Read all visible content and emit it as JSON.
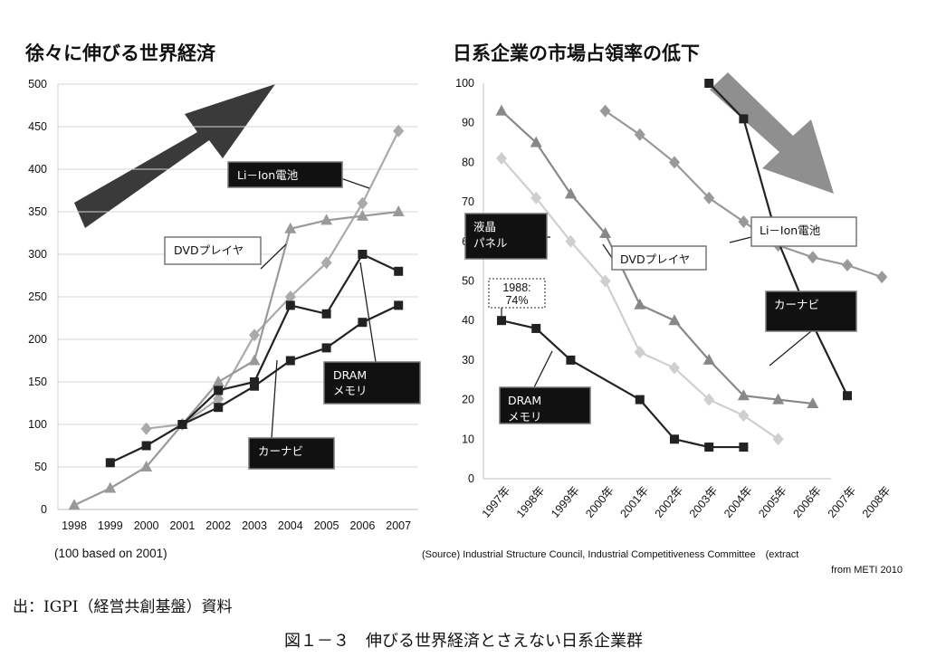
{
  "chart_data": [
    {
      "type": "line",
      "title": "徐々に伸びる世界経済",
      "note": "(100 based on 2001)",
      "x": [
        "1998",
        "1999",
        "2000",
        "2001",
        "2002",
        "2003",
        "2004",
        "2005",
        "2006",
        "2007"
      ],
      "ylim": [
        0,
        500
      ],
      "yticks": [
        0,
        50,
        100,
        150,
        200,
        250,
        300,
        350,
        400,
        450,
        500
      ],
      "grid": true,
      "series": [
        {
          "name": "Li－Ion電池",
          "color": "#aaaaaa",
          "marker": "diamond",
          "values": [
            null,
            null,
            95,
            100,
            130,
            205,
            250,
            290,
            360,
            445
          ]
        },
        {
          "name": "DVDプレイヤ",
          "color": "#999999",
          "marker": "triangle",
          "values": [
            5,
            25,
            50,
            100,
            150,
            175,
            330,
            340,
            345,
            350
          ]
        },
        {
          "name": "DRAM\nメモリ",
          "color": "#222222",
          "marker": "square",
          "values": [
            null,
            55,
            75,
            100,
            140,
            150,
            240,
            230,
            300,
            280
          ]
        },
        {
          "name": "カーナビ",
          "color": "#222222",
          "marker": "square",
          "values": [
            null,
            null,
            null,
            100,
            120,
            145,
            175,
            190,
            220,
            240
          ]
        }
      ]
    },
    {
      "type": "line",
      "title": "日系企業の市場占領率の低下",
      "source": "(Source) Industrial Structure Council, Industrial Competitiveness Committee　(extract",
      "source2": "from METI 2010",
      "x": [
        "1997年",
        "1998年",
        "1999年",
        "2000年",
        "2001年",
        "2002年",
        "2003年",
        "2004年",
        "2005年",
        "2006年",
        "2007年",
        "2008年"
      ],
      "ylim": [
        0,
        100
      ],
      "yticks": [
        0,
        10,
        20,
        30,
        40,
        50,
        60,
        70,
        80,
        90,
        100
      ],
      "grid": false,
      "series": [
        {
          "name": "DVDプレイヤ",
          "color": "#888888",
          "marker": "triangle",
          "values": [
            93,
            85,
            72,
            62,
            44,
            40,
            30,
            21,
            20,
            19,
            null,
            null
          ]
        },
        {
          "name": "液晶\nパネル",
          "color": "#cfcfcf",
          "marker": "diamond",
          "values": [
            81,
            71,
            60,
            50,
            32,
            28,
            20,
            16,
            10,
            null,
            null,
            null
          ]
        },
        {
          "name": "DRAM\nメモリ",
          "color": "#222222",
          "marker": "square",
          "values": [
            40,
            38,
            30,
            null,
            20,
            10,
            8,
            8,
            null,
            null,
            null,
            null
          ]
        },
        {
          "name": "Li－Ion電池",
          "color": "#999999",
          "marker": "diamond",
          "values": [
            null,
            null,
            null,
            93,
            87,
            80,
            71,
            65,
            59,
            56,
            54,
            51
          ]
        },
        {
          "name": "カーナビ",
          "color": "#222222",
          "marker": "square",
          "values": [
            null,
            null,
            null,
            null,
            null,
            null,
            100,
            91,
            60,
            39,
            21,
            null
          ]
        }
      ],
      "annotation": "1988:\n74%"
    }
  ],
  "footer": {
    "source": "出：IGPI（経営共創基盤）資料",
    "caption": "図１－３　伸びる世界経済とさえない日系企業群"
  }
}
